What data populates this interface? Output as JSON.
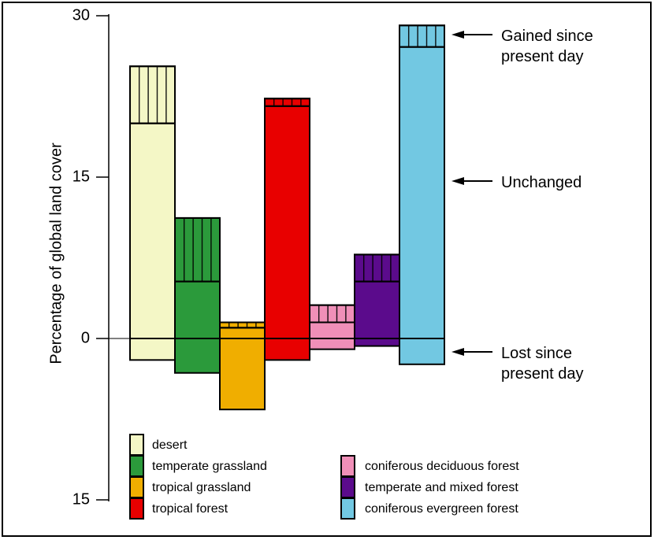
{
  "chart_data": {
    "type": "bar",
    "stacked": true,
    "y_label": "Percentage of global land cover",
    "categories": [
      "desert",
      "temperate grassland",
      "tropical grassland",
      "tropical forest",
      "coniferous deciduous forest",
      "temperate and mixed forest",
      "coniferous evergreen forest"
    ],
    "colors": [
      "#f4f7c6",
      "#2b9a3b",
      "#f0ae00",
      "#e80000",
      "#f08fb8",
      "#5b0b8c",
      "#72c8e2"
    ],
    "series": [
      {
        "name": "Gained since present day",
        "hatch": true,
        "values": [
          5.3,
          5.9,
          0.5,
          0.7,
          1.6,
          2.5,
          2.0
        ]
      },
      {
        "name": "Unchanged",
        "hatch": false,
        "values": [
          20.0,
          5.3,
          1.0,
          21.6,
          1.5,
          5.3,
          27.1
        ]
      },
      {
        "name": "Lost since present day",
        "hatch": false,
        "values": [
          -2.0,
          -3.2,
          -6.6,
          -2.0,
          -1.0,
          -0.7,
          -2.4
        ]
      }
    ],
    "ylim": [
      -15,
      30
    ],
    "yticks": [
      {
        "value": -15,
        "label": "15"
      },
      0,
      15,
      30
    ]
  }
}
